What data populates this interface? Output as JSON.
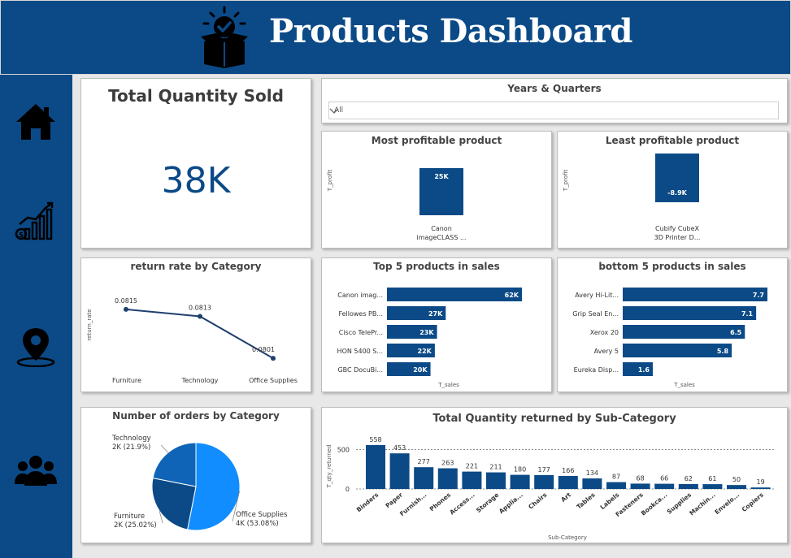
{
  "header": {
    "title": "Products Dashboard",
    "logo_icon": "box-check-icon"
  },
  "sidebar": {
    "items": [
      {
        "name": "home",
        "icon": "home-icon"
      },
      {
        "name": "sales",
        "icon": "growth-chart-icon"
      },
      {
        "name": "map",
        "icon": "location-pin-icon"
      },
      {
        "name": "customers",
        "icon": "people-icon"
      }
    ]
  },
  "colors": {
    "brand": "#0b4a87",
    "pie_tech": "#0f64b8",
    "pie_furniture": "#0b4a87",
    "pie_office": "#118dff",
    "line": "#1f3f6e"
  },
  "kpi": {
    "title": "Total Quantity Sold",
    "value": "38K"
  },
  "slicer": {
    "title": "Years & Quarters",
    "value": "All"
  },
  "most_profitable": {
    "title": "Most profitable product",
    "chart_data": {
      "type": "bar",
      "ylabel": "T_profit",
      "categories": [
        "Canon imageCLASS ..."
      ],
      "values": [
        25
      ],
      "labels": [
        "25K"
      ]
    }
  },
  "least_profitable": {
    "title": "Least profitable product",
    "chart_data": {
      "type": "bar",
      "ylabel": "T_profit",
      "categories": [
        "Cubify CubeX 3D Printer D..."
      ],
      "values": [
        -8.9
      ],
      "labels": [
        "-8.9K"
      ]
    }
  },
  "return_rate": {
    "title": "return rate by Category",
    "chart_data": {
      "type": "line",
      "ylabel": "return_rate",
      "categories": [
        "Furniture",
        "Technology",
        "Office Supplies"
      ],
      "values": [
        0.0815,
        0.0813,
        0.0801
      ],
      "labels": [
        "0.0815",
        "0.0813",
        "0.0801"
      ]
    }
  },
  "top5": {
    "title": "Top 5 products in sales",
    "chart_data": {
      "type": "bar",
      "orientation": "horizontal",
      "xlabel": "T_sales",
      "categories": [
        "Canon imag...",
        "Fellowes PB...",
        "Cisco TelePr...",
        "HON 5400 S...",
        "GBC DocuBi..."
      ],
      "values": [
        62,
        27,
        23,
        22,
        20
      ],
      "labels": [
        "62K",
        "27K",
        "23K",
        "22K",
        "20K"
      ]
    }
  },
  "bottom5": {
    "title": "bottom 5 products in sales",
    "chart_data": {
      "type": "bar",
      "orientation": "horizontal",
      "xlabel": "T_sales",
      "categories": [
        "Avery Hi-Lit...",
        "Grip Seal En...",
        "Xerox 20",
        "Avery 5",
        "Eureka Disp..."
      ],
      "values": [
        7.7,
        7.1,
        6.5,
        5.8,
        1.6
      ],
      "labels": [
        "7.7",
        "7.1",
        "6.5",
        "5.8",
        "1.6"
      ]
    }
  },
  "orders": {
    "title": "Number of orders by Category",
    "chart_data": {
      "type": "pie",
      "slices": [
        {
          "name": "Office Supplies",
          "label": "4K (53.08%)",
          "pct": 53.08
        },
        {
          "name": "Furniture",
          "label": "2K (25.02%)",
          "pct": 25.02
        },
        {
          "name": "Technology",
          "label": "2K (21.9%)",
          "pct": 21.9
        }
      ]
    }
  },
  "returned": {
    "title": "Total Quantity returned by Sub-Category",
    "chart_data": {
      "type": "bar",
      "xlabel": "Sub-Category",
      "ylabel": "T_qty_returned",
      "ylim": [
        0,
        620
      ],
      "yticks": [
        "0",
        "500"
      ],
      "categories": [
        "Binders",
        "Paper",
        "Furnish...",
        "Phones",
        "Access...",
        "Storage",
        "Applia...",
        "Chairs",
        "Art",
        "Tables",
        "Labels",
        "Fasteners",
        "Bookca...",
        "Supplies",
        "Machin...",
        "Envelo...",
        "Copiers"
      ],
      "values": [
        558,
        453,
        277,
        263,
        221,
        211,
        180,
        177,
        166,
        134,
        87,
        68,
        66,
        62,
        61,
        50,
        19
      ]
    }
  }
}
